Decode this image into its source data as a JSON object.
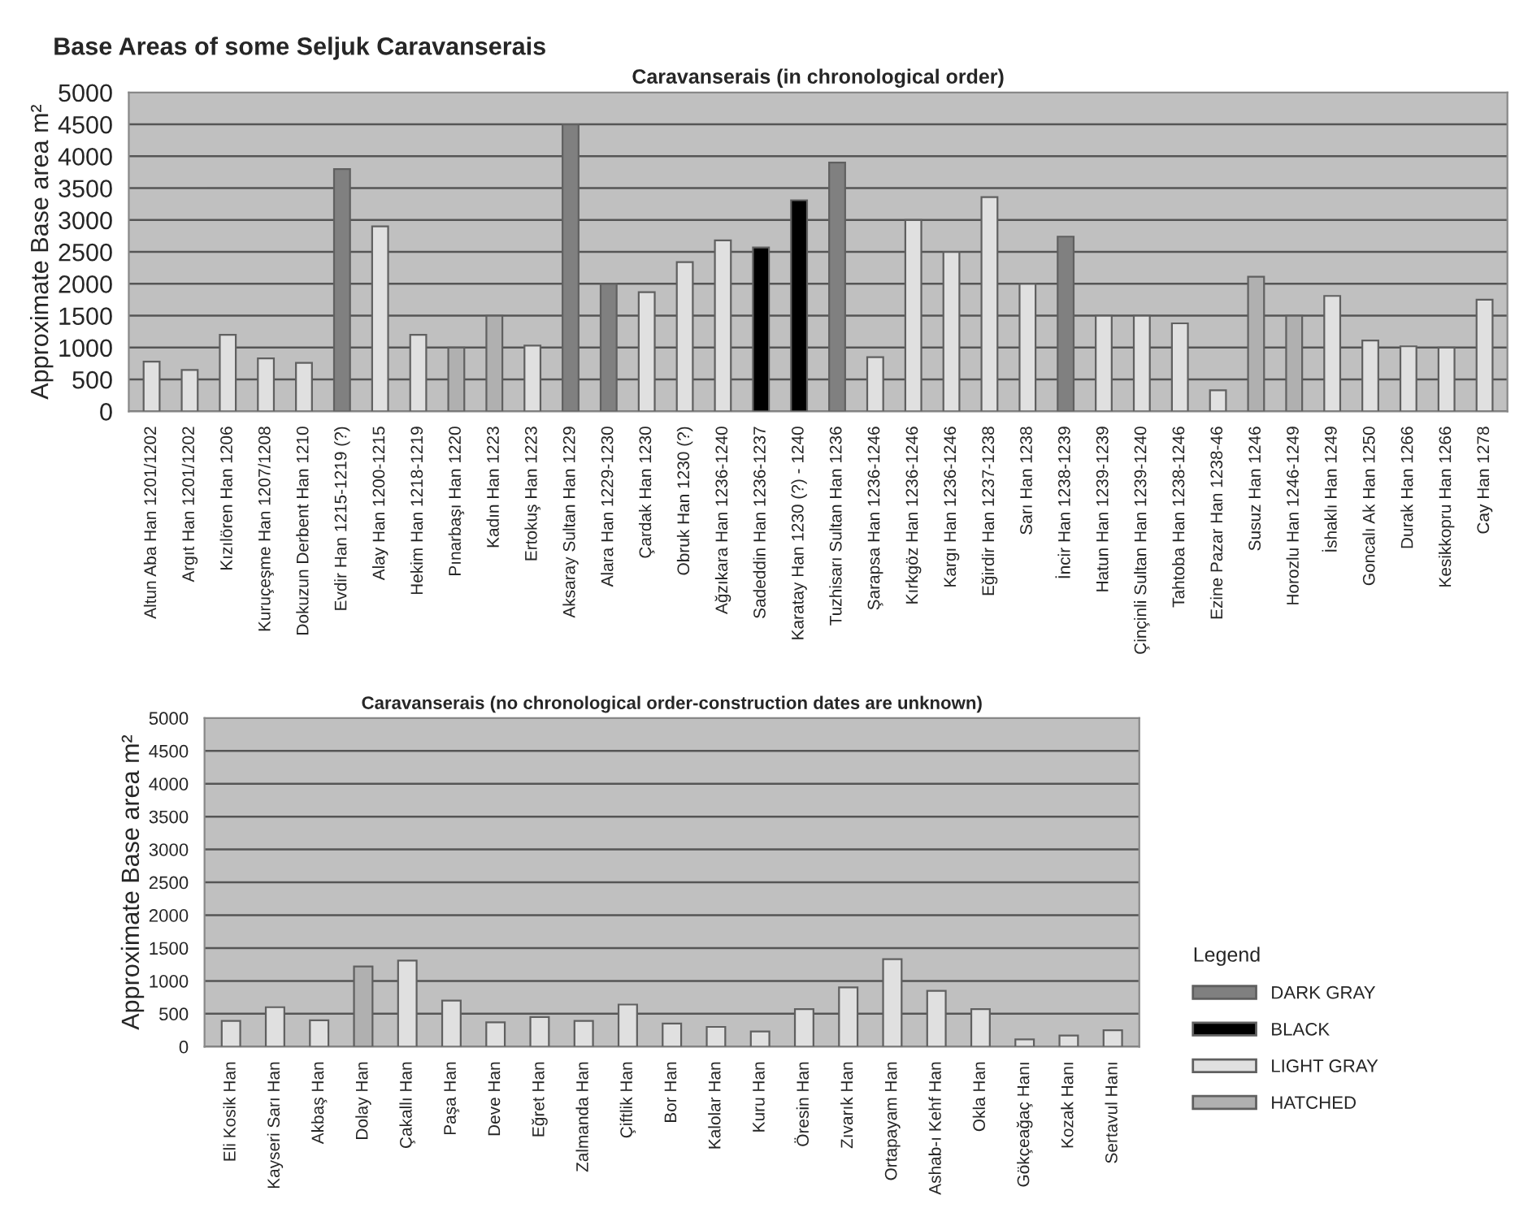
{
  "chart_data": [
    {
      "type": "bar",
      "title": "Base Areas of some Seljuk Caravanserais",
      "subtitle": "Caravanserais (in chronological order)",
      "ylabel": "Approximate Base area m²",
      "categories": [
        "Altun Aba Han 1201/1202",
        "Argıt Han 1201/1202",
        "Kızılören Han 1206",
        "Kuruçeşme Han 1207/1208",
        "Dokuzun Derbent Han 1210",
        "Evdir Han 1215-1219 (?)",
        "Alay Han 1200-1215",
        "Hekim Han 1218-1219",
        "Pınarbaşı Han 1220",
        "Kadın Han 1223",
        "Ertokuş Han 1223",
        "Aksaray Sultan Han 1229",
        "Alara Han 1229-1230",
        "Çardak Han 1230",
        "Obruk Han 1230 (?)",
        "Ağzıkara Han 1236-1240",
        "Sadeddin Han 1236-1237",
        "Karatay Han 1230 (?) - 1240",
        "Tuzhisarı Sultan Han 1236",
        "Şarapsa Han 1236-1246",
        "Kırkgöz Han 1236-1246",
        "Kargı Han 1236-1246",
        "Eğirdir Han 1237-1238",
        "Sarı Han 1238",
        "İncir Han 1238-1239",
        "Hatun Han 1239-1239",
        "Çinçinli Sultan Han 1239-1240",
        "Tahtoba Han 1238-1246",
        "Ezine Pazar Han 1238-46",
        "Susuz Han 1246",
        "Horozlu Han 1246-1249",
        "İshaklı Han 1249",
        "Goncalı Ak Han 1250",
        "Durak Han 1266",
        "Kesikkopru Han 1266",
        "Cay Han 1278"
      ],
      "series": [
        {
          "color": "#808080",
          "values": [
            null,
            null,
            null,
            null,
            null,
            3800,
            null,
            null,
            null,
            null,
            null,
            4500,
            2000,
            null,
            null,
            null,
            null,
            null,
            3900,
            null,
            null,
            null,
            null,
            null,
            2740,
            null,
            null,
            null,
            null,
            null,
            null,
            null,
            null,
            null,
            null,
            null
          ]
        },
        {
          "color": "#000000",
          "values": [
            null,
            null,
            null,
            null,
            null,
            null,
            null,
            null,
            null,
            null,
            null,
            null,
            null,
            null,
            null,
            null,
            2570,
            3310,
            null,
            null,
            null,
            null,
            null,
            null,
            null,
            null,
            null,
            null,
            null,
            null,
            null,
            null,
            null,
            null,
            null,
            null
          ]
        },
        {
          "color": "#e0e0e0",
          "values": [
            780,
            650,
            1200,
            830,
            760,
            null,
            2900,
            1200,
            null,
            null,
            1030,
            null,
            null,
            1870,
            2340,
            2680,
            null,
            null,
            null,
            850,
            3000,
            2500,
            3360,
            2000,
            null,
            1500,
            1500,
            1380,
            330,
            null,
            null,
            1810,
            1110,
            1020,
            1000,
            1750
          ]
        },
        {
          "color": "#b0b0b0",
          "values": [
            null,
            null,
            null,
            null,
            null,
            null,
            null,
            null,
            1000,
            1500,
            null,
            null,
            null,
            null,
            null,
            null,
            null,
            null,
            null,
            null,
            null,
            null,
            null,
            null,
            null,
            null,
            null,
            null,
            null,
            2110,
            1500,
            null,
            null,
            null,
            null,
            null
          ]
        }
      ],
      "ylim": [
        0,
        5000
      ],
      "yticks": [
        0,
        500,
        1000,
        1500,
        2000,
        2500,
        3000,
        3500,
        4000,
        4500,
        5000
      ],
      "grid": "y"
    },
    {
      "type": "bar",
      "title": "Caravanserais (no chronological order-construction dates are unknown)",
      "ylabel": "Approximate Base area m²",
      "legend_title": "Legend",
      "legend": "right",
      "categories": [
        "Eli Kosik Han",
        "Kayseri Sarı Han",
        "Akbaş Han",
        "Dolay Han",
        "Çakallı Han",
        "Paşa Han",
        "Deve Han",
        "Eğret Han",
        "Zalmanda Han",
        "Çiftlik Han",
        "Bor Han",
        "Kalolar Han",
        "Kuru Han",
        "Öresin Han",
        "Zıvarık Han",
        "Ortapayam Han",
        "Ashab-ı Kehf Han",
        "Okla Han",
        "Gökçeağaç Hanı",
        "Kozak Hanı",
        "Sertavul Hanı"
      ],
      "series": [
        {
          "name": "DARK GRAY",
          "color": "#808080",
          "values": [
            null,
            null,
            null,
            null,
            null,
            null,
            null,
            null,
            null,
            null,
            null,
            null,
            null,
            null,
            null,
            null,
            null,
            null,
            null,
            null,
            null
          ]
        },
        {
          "name": "BLACK",
          "color": "#000000",
          "values": [
            null,
            null,
            null,
            null,
            null,
            null,
            null,
            null,
            null,
            null,
            null,
            null,
            null,
            null,
            null,
            null,
            null,
            null,
            null,
            null,
            null
          ]
        },
        {
          "name": "LIGHT GRAY",
          "color": "#e0e0e0",
          "values": [
            390,
            600,
            400,
            null,
            1310,
            700,
            370,
            450,
            390,
            640,
            350,
            300,
            230,
            570,
            900,
            1330,
            850,
            570,
            110,
            170,
            250
          ]
        },
        {
          "name": "HATCHED",
          "color": "#b0b0b0",
          "values": [
            null,
            null,
            null,
            1220,
            null,
            null,
            null,
            null,
            null,
            null,
            null,
            null,
            null,
            null,
            null,
            null,
            null,
            null,
            null,
            null,
            null
          ]
        }
      ],
      "ylim": [
        0,
        5000
      ],
      "yticks": [
        0,
        500,
        1000,
        1500,
        2000,
        2500,
        3000,
        3500,
        4000,
        4500,
        5000
      ],
      "grid": "y"
    }
  ]
}
